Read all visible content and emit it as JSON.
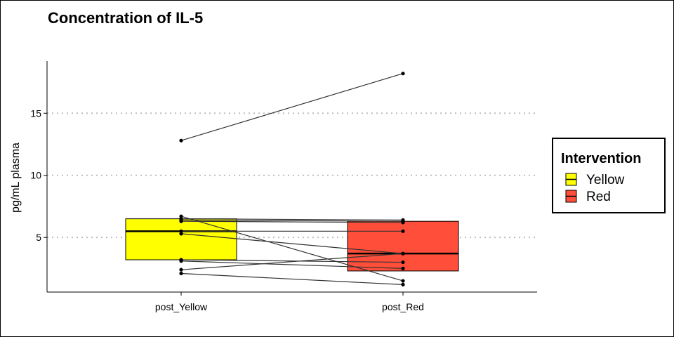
{
  "chart_data": {
    "type": "box",
    "title": "Concentration of IL-5",
    "xlabel": "",
    "ylabel": "pg/mL plasma",
    "categories": [
      "post_Yellow",
      "post_Red"
    ],
    "ylim": [
      0.6,
      19.2
    ],
    "yticks": [
      5,
      10,
      15
    ],
    "grid": "horizontal-dotted",
    "legend": {
      "title": "Intervention",
      "position": "right",
      "entries": [
        {
          "label": "Yellow",
          "color": "#ffff00"
        },
        {
          "label": "Red",
          "color": "#ff4f3a"
        }
      ]
    },
    "boxes": [
      {
        "category": "post_Yellow",
        "q1": 3.2,
        "median": 5.5,
        "q3": 6.5,
        "color": "#ffff00"
      },
      {
        "category": "post_Red",
        "q1": 2.3,
        "median": 3.7,
        "q3": 6.3,
        "color": "#ff4f3a"
      }
    ],
    "paired_points": [
      {
        "post_Yellow": 12.8,
        "post_Red": 18.2
      },
      {
        "post_Yellow": 6.7,
        "post_Red": 1.5
      },
      {
        "post_Yellow": 6.5,
        "post_Red": 6.4
      },
      {
        "post_Yellow": 6.4,
        "post_Red": 6.3
      },
      {
        "post_Yellow": 6.3,
        "post_Red": 6.2
      },
      {
        "post_Yellow": 5.5,
        "post_Red": 5.5
      },
      {
        "post_Yellow": 5.3,
        "post_Red": 3.7
      },
      {
        "post_Yellow": 3.2,
        "post_Red": 3.0
      },
      {
        "post_Yellow": 3.1,
        "post_Red": 2.5
      },
      {
        "post_Yellow": 2.4,
        "post_Red": 3.7
      },
      {
        "post_Yellow": 2.1,
        "post_Red": 1.2
      }
    ]
  }
}
